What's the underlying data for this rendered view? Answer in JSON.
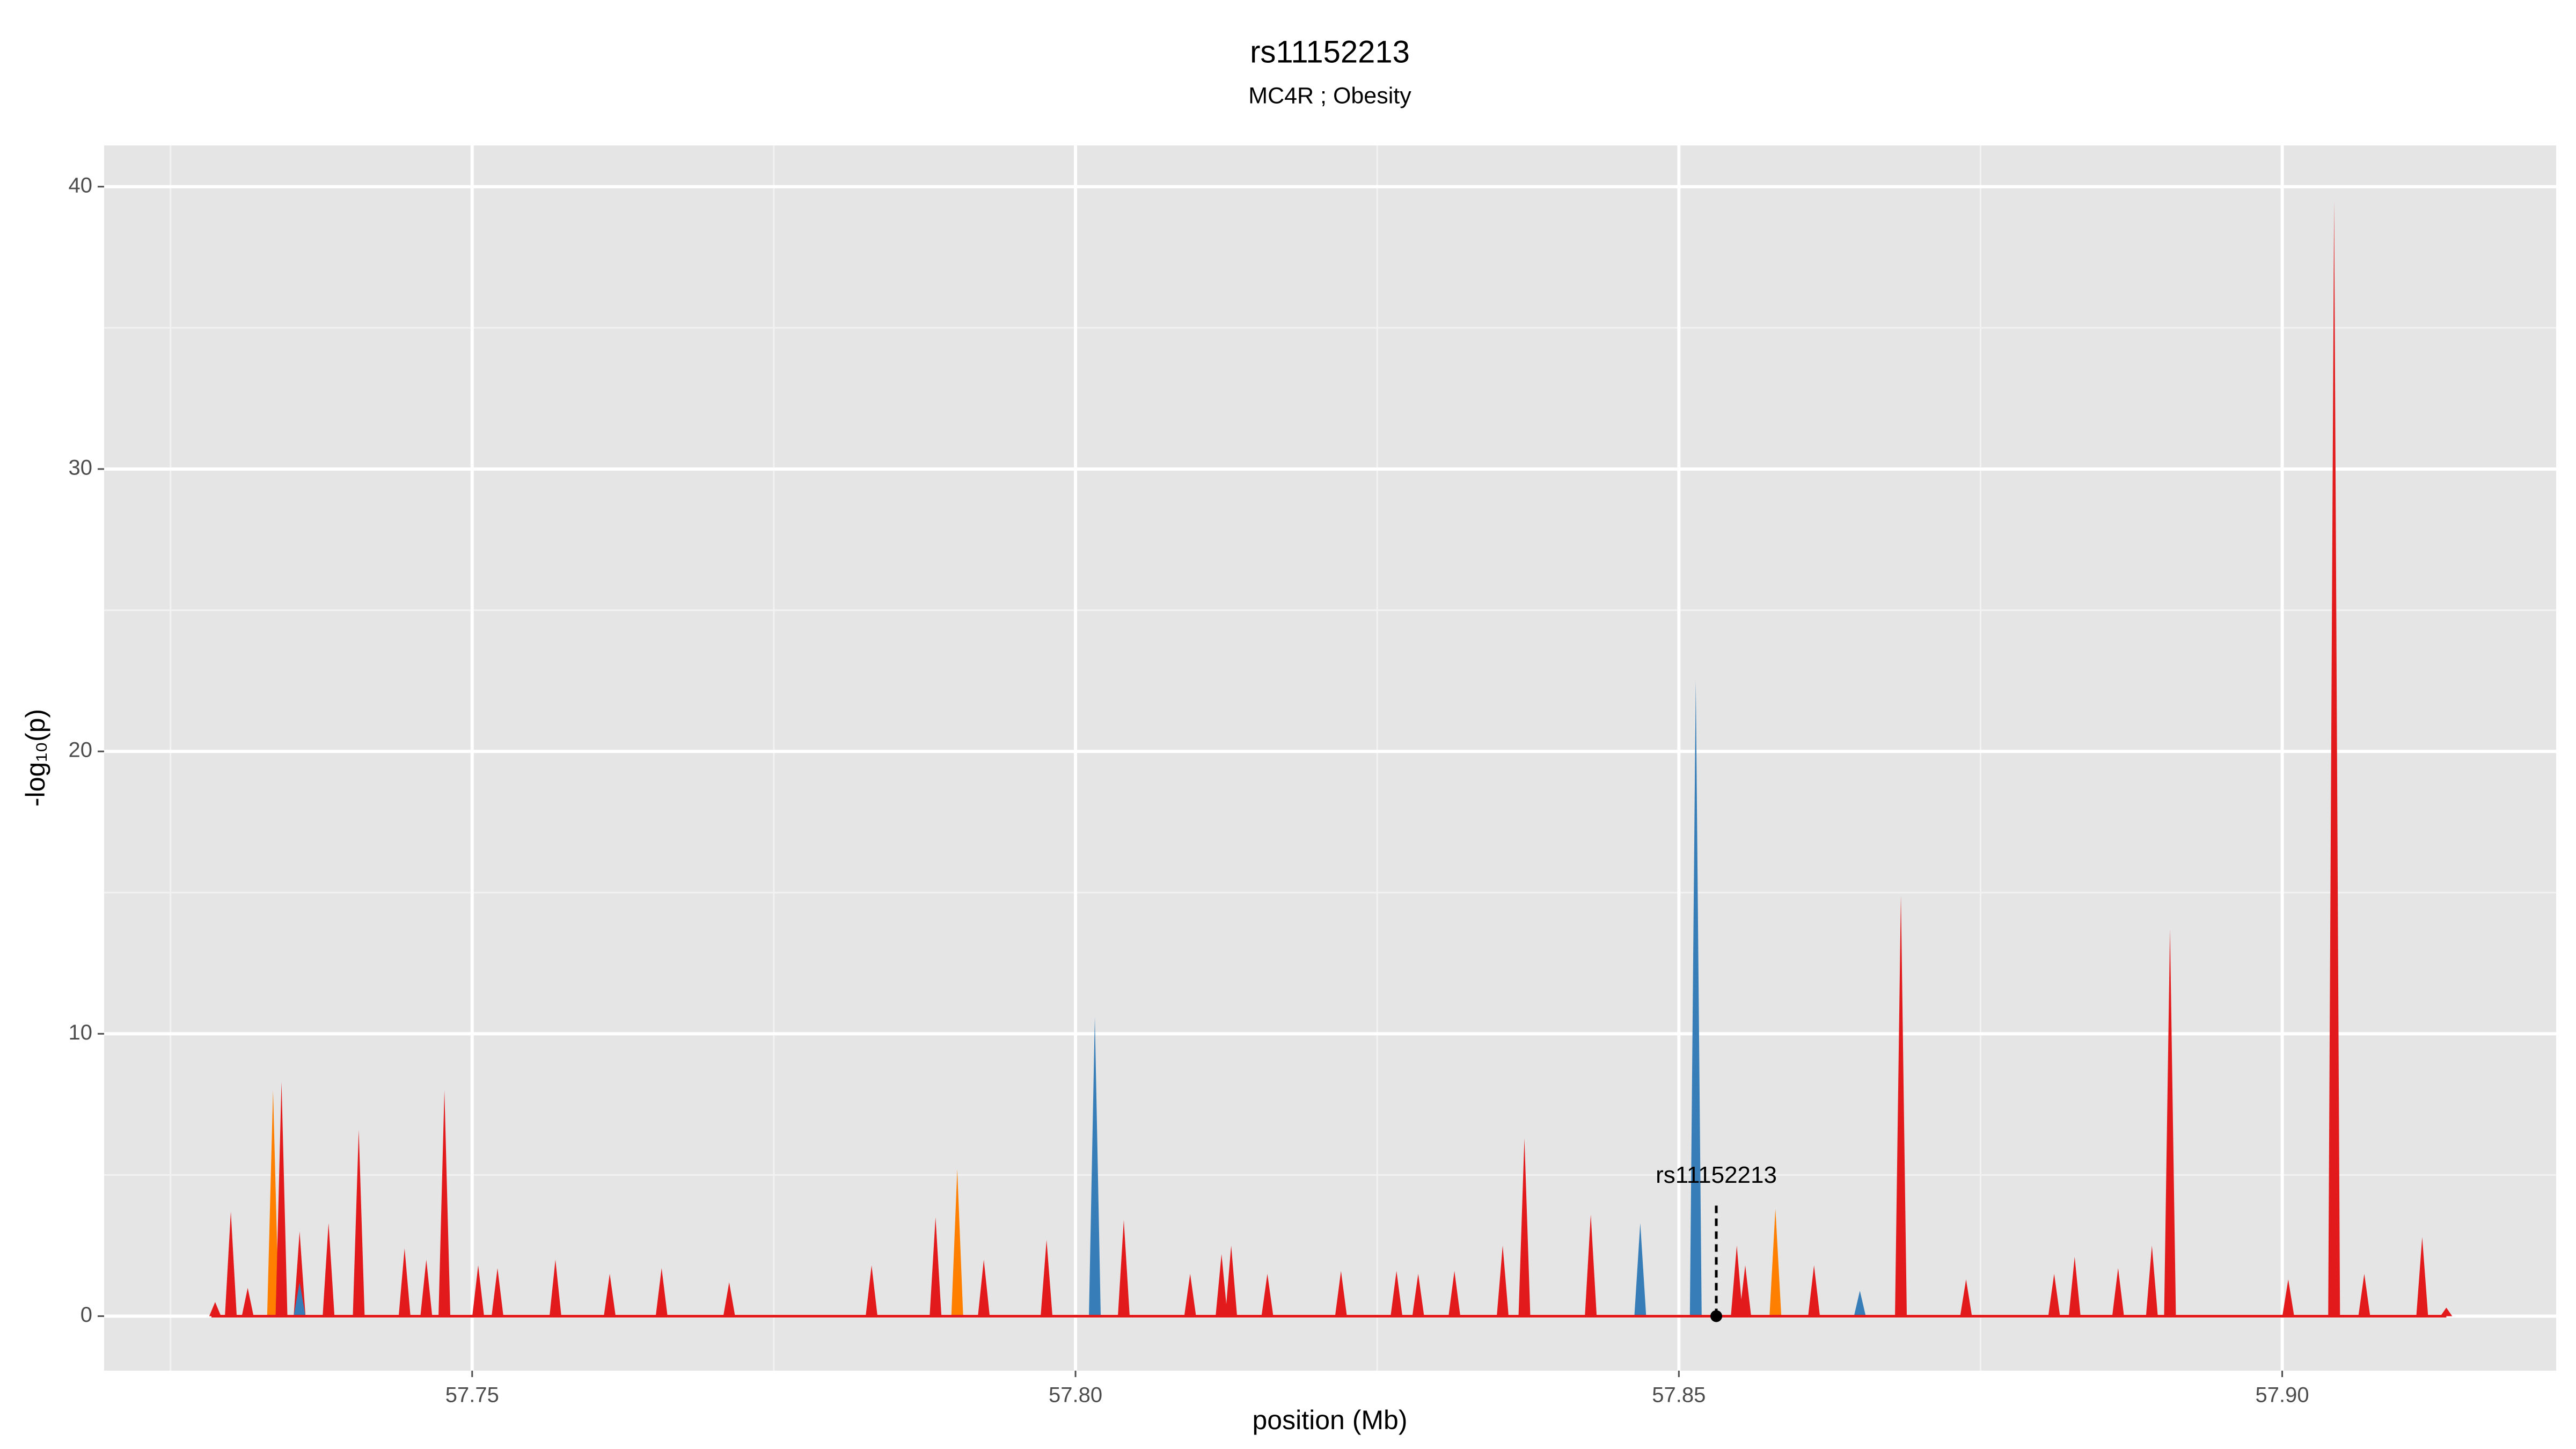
{
  "chart_data": {
    "type": "area",
    "title": "rs11152213",
    "subtitle": "MC4R ; Obesity",
    "x_label": "position (Mb)",
    "y_label": "-log₁₀(p)",
    "xlim": [
      57.7195,
      57.9227
    ],
    "ylim": [
      -1.93,
      41.46
    ],
    "xticks": [
      57.75,
      {
        "value": 57.8,
        "label": "57.80"
      },
      57.85,
      {
        "value": 57.9,
        "label": "57.90"
      }
    ],
    "yticks": [
      0,
      10,
      20,
      30,
      40
    ],
    "xminor_ticks": [
      57.725,
      57.775,
      57.825,
      57.875
    ],
    "yminor_ticks": [
      5,
      15,
      25,
      35
    ],
    "grid": true,
    "series": [
      {
        "color": "#ff7f00",
        "x": [
          57.7335,
          57.7569,
          57.7902,
          57.7976,
          57.858
        ],
        "values": [
          8,
          1.5,
          5.2,
          1.2,
          3.8
        ]
      },
      {
        "color": "#e31a1c",
        "x": [
          57.7287,
          57.73,
          57.7314,
          57.7342,
          57.7357,
          57.7381,
          57.7406,
          57.7444,
          57.7462,
          57.7477,
          57.7505,
          57.7521,
          57.7569,
          57.7614,
          57.7657,
          57.7713,
          57.7831,
          57.7884,
          57.7924,
          57.7976,
          57.804,
          57.8095,
          57.8121,
          57.8129,
          57.8159,
          57.822,
          57.8266,
          57.8284,
          57.8314,
          57.8354,
          57.8372,
          57.8427,
          57.8548,
          57.8555,
          57.8612,
          57.8684,
          57.8738,
          57.8811,
          57.8828,
          57.8864,
          57.8892,
          57.8907,
          57.9005,
          57.9043,
          57.9068,
          57.9116,
          57.9136
        ],
        "values": [
          0.5,
          3.7,
          1,
          8.3,
          3,
          3.3,
          6.6,
          2.4,
          2,
          8,
          1.8,
          1.7,
          2,
          1.5,
          1.7,
          1.2,
          1.8,
          3.5,
          2,
          2.7,
          3.4,
          1.5,
          2.2,
          2.5,
          1.5,
          1.6,
          1.6,
          1.5,
          1.6,
          2.5,
          6.3,
          3.6,
          2.5,
          1.8,
          1.8,
          14.9,
          1.3,
          1.5,
          2.1,
          1.7,
          2.5,
          13.7,
          1.3,
          39.5,
          1.5,
          2.8,
          0.3
        ]
      },
      {
        "color": "#377eb8",
        "x": [
          57.7357,
          57.8016,
          57.8468,
          57.8514,
          57.865
        ],
        "values": [
          1.2,
          10.6,
          3.3,
          22.5,
          0.9
        ]
      }
    ],
    "annotation": {
      "text": "rs11152213",
      "x": 57.8531,
      "y": 0
    }
  }
}
